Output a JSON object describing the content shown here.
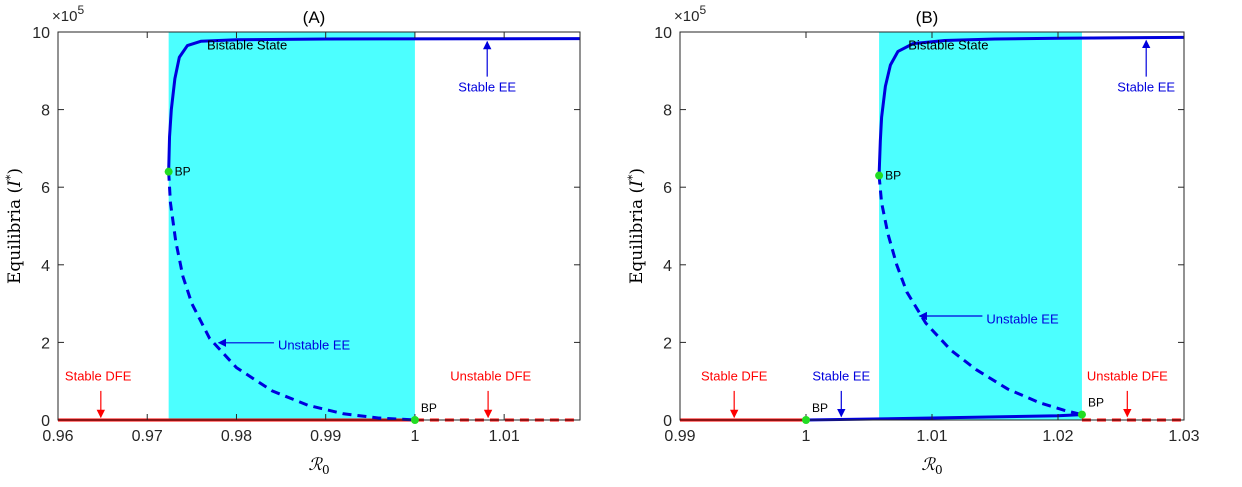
{
  "colors": {
    "stable_dfe": "#ff0000",
    "ee": "#0000dd",
    "bistable": "#00ffff",
    "bp": "#22dd22",
    "axis": "#262626"
  },
  "chart_data": [
    {
      "type": "line",
      "title": "(A)",
      "xlabel": "R0",
      "ylabel": "Equilibria (I*)",
      "xlim": [
        0.96,
        1.0185
      ],
      "ylim": [
        0,
        10
      ],
      "y_multiplier": "×10",
      "y_multiplier_exp": "5",
      "xticks": [
        0.96,
        0.97,
        0.98,
        0.99,
        1,
        1.01
      ],
      "xtick_labels": [
        "0.96",
        "0.97",
        "0.98",
        "0.99",
        "1",
        "1.01"
      ],
      "yticks": [
        0,
        2,
        4,
        6,
        8,
        10
      ],
      "ytick_labels": [
        "0",
        "2",
        "4",
        "6",
        "8",
        "10"
      ],
      "grid": false,
      "bistable_region": {
        "x0": 0.9724,
        "x1": 1.0,
        "label": "Bistable State",
        "label_x": 0.9812,
        "label_y": 9.65
      },
      "series": [
        {
          "name": "",
          "style": "red-solid",
          "x": [
            0.96,
            1.0
          ],
          "y": [
            0,
            0
          ]
        },
        {
          "name": "",
          "style": "red-dashed",
          "x": [
            1.0,
            1.0185
          ],
          "y": [
            0,
            0
          ]
        },
        {
          "name": "",
          "style": "blue-solid",
          "x": [
            0.9724,
            0.9725,
            0.9727,
            0.9731,
            0.9736,
            0.9745,
            0.976,
            0.98,
            0.99,
            1.0185
          ],
          "y": [
            6.4,
            7.3,
            8.0,
            8.8,
            9.35,
            9.65,
            9.76,
            9.8,
            9.82,
            9.83
          ]
        },
        {
          "name": "",
          "style": "blue-dashed",
          "x": [
            0.9724,
            0.9726,
            0.9732,
            0.974,
            0.975,
            0.977,
            0.98,
            0.984,
            0.988,
            0.992,
            0.996,
            1.0
          ],
          "y": [
            6.4,
            5.6,
            4.6,
            3.7,
            3.0,
            2.1,
            1.35,
            0.75,
            0.38,
            0.16,
            0.05,
            0.0
          ]
        }
      ],
      "points": [
        {
          "label": "BP",
          "x": 0.9724,
          "y": 6.4
        },
        {
          "label": "BP",
          "x": 1.0,
          "y": 0.0
        }
      ],
      "annotations": [
        {
          "text": "Stable DFE",
          "color": "red",
          "text_x": 0.9645,
          "text_y": 1.15,
          "tail_x": 0.9648,
          "tail_y": 0.75,
          "head_x": 0.9648,
          "head_y": 0.07
        },
        {
          "text": "Unstable DFE",
          "color": "red",
          "text_x": 1.0085,
          "text_y": 1.15,
          "tail_x": 1.0082,
          "tail_y": 0.75,
          "head_x": 1.0082,
          "head_y": 0.07
        },
        {
          "text": "Unstable EE",
          "color": "blue",
          "text_x": 0.9855,
          "text_y": 1.95,
          "tail_x": 0.9842,
          "tail_y": 1.99,
          "head_x": 0.978,
          "head_y": 1.99
        },
        {
          "text": "Stable EE",
          "color": "blue",
          "text_x": 1.0081,
          "text_y": 8.6,
          "tail_x": 1.0081,
          "tail_y": 8.85,
          "head_x": 1.0081,
          "head_y": 9.75
        }
      ]
    },
    {
      "type": "line",
      "title": "(B)",
      "xlabel": "R0",
      "ylabel": "Equilibria (I*)",
      "xlim": [
        0.99,
        1.03
      ],
      "ylim": [
        0,
        10
      ],
      "y_multiplier": "×10",
      "y_multiplier_exp": "5",
      "xticks": [
        0.99,
        1.0,
        1.01,
        1.02,
        1.03
      ],
      "xtick_labels": [
        "0.99",
        "1",
        "1.01",
        "1.02",
        "1.03"
      ],
      "yticks": [
        0,
        2,
        4,
        6,
        8,
        10
      ],
      "ytick_labels": [
        "0",
        "2",
        "4",
        "6",
        "8",
        "10"
      ],
      "grid": false,
      "bistable_region": {
        "x0": 1.0058,
        "x1": 1.0219,
        "label": "Bistable State",
        "label_x": 1.0113,
        "label_y": 9.65
      },
      "series": [
        {
          "name": "",
          "style": "red-solid",
          "x": [
            0.99,
            1.0
          ],
          "y": [
            0,
            0
          ]
        },
        {
          "name": "",
          "style": "red-dashed",
          "x": [
            1.0219,
            1.03
          ],
          "y": [
            0,
            0
          ]
        },
        {
          "name": "",
          "style": "blue-solid",
          "x": [
            1.0,
            1.01,
            1.02,
            1.0219
          ],
          "y": [
            0.0,
            0.05,
            0.11,
            0.14
          ]
        },
        {
          "name": "",
          "style": "blue-solid",
          "x": [
            1.0058,
            1.0059,
            1.006,
            1.0063,
            1.0067,
            1.0073,
            1.0085,
            1.011,
            1.015,
            1.02,
            1.03
          ],
          "y": [
            6.3,
            7.2,
            7.8,
            8.6,
            9.15,
            9.5,
            9.7,
            9.78,
            9.82,
            9.84,
            9.86
          ]
        },
        {
          "name": "",
          "style": "blue-dashed",
          "x": [
            1.0058,
            1.006,
            1.0065,
            1.0072,
            1.008,
            1.0095,
            1.0115,
            1.0135,
            1.016,
            1.0185,
            1.0205,
            1.0219
          ],
          "y": [
            6.3,
            5.6,
            4.8,
            4.0,
            3.3,
            2.5,
            1.8,
            1.3,
            0.8,
            0.45,
            0.25,
            0.14
          ]
        }
      ],
      "points": [
        {
          "label": "BP",
          "x": 1.0058,
          "y": 6.3
        },
        {
          "label": "BP",
          "x": 1.0,
          "y": 0.0
        },
        {
          "label": "BP",
          "x": 1.0219,
          "y": 0.14
        }
      ],
      "annotations": [
        {
          "text": "Stable DFE",
          "color": "red",
          "text_x": 0.9943,
          "text_y": 1.15,
          "tail_x": 0.9943,
          "tail_y": 0.75,
          "head_x": 0.9943,
          "head_y": 0.07
        },
        {
          "text": "Unstable DFE",
          "color": "red",
          "text_x": 1.0255,
          "text_y": 1.15,
          "tail_x": 1.0255,
          "tail_y": 0.75,
          "head_x": 1.0255,
          "head_y": 0.09
        },
        {
          "text": "Stable EE",
          "color": "blue",
          "text_x": 1.0028,
          "text_y": 1.15,
          "tail_x": 1.0028,
          "tail_y": 0.75,
          "head_x": 1.0028,
          "head_y": 0.09
        },
        {
          "text": "Unstable EE",
          "color": "blue",
          "text_x": 1.016,
          "text_y": 2.62,
          "tail_x": 1.014,
          "tail_y": 2.68,
          "head_x": 1.009,
          "head_y": 2.68
        },
        {
          "text": "Stable EE",
          "color": "blue",
          "text_x": 1.027,
          "text_y": 8.6,
          "tail_x": 1.027,
          "tail_y": 8.85,
          "head_x": 1.027,
          "head_y": 9.78
        }
      ]
    }
  ]
}
